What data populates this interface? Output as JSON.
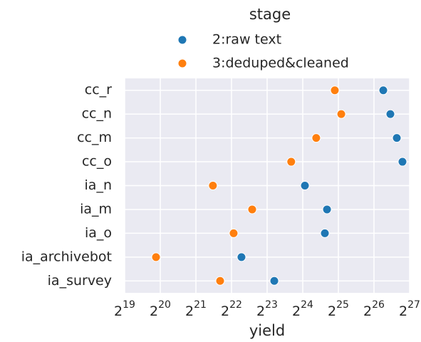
{
  "chart_data": {
    "type": "scatter",
    "xlabel": "yield",
    "legend_title": "stage",
    "legend_position": "top",
    "xscale": "log",
    "logbase": 2,
    "grid": true,
    "background": "#eaeaf2",
    "categories": [
      "cc_r",
      "cc_n",
      "cc_m",
      "cc_o",
      "ia_n",
      "ia_m",
      "ia_o",
      "ia_archivebot",
      "ia_survey"
    ],
    "series": [
      {
        "name": "2:raw text",
        "color": "#1f77b4",
        "values": [
          80400000,
          92300000,
          104600000,
          116800000,
          17500000,
          26900000,
          25800000,
          5090000,
          9640000
        ]
      },
      {
        "name": "3:deduped&cleaned",
        "color": "#ff7f0e",
        "values": [
          31300000,
          35500000,
          21800000,
          13400000,
          2920000,
          6270000,
          4370000,
          965000,
          3360000
        ]
      }
    ],
    "xlim": [
      524288,
      134217728
    ],
    "xticks": [
      {
        "value": 524288,
        "label": "2^19"
      },
      {
        "value": 1048576,
        "label": "2^20"
      },
      {
        "value": 2097152,
        "label": "2^21"
      },
      {
        "value": 4194304,
        "label": "2^22"
      },
      {
        "value": 8388608,
        "label": "2^23"
      },
      {
        "value": 16777216,
        "label": "2^24"
      },
      {
        "value": 33554432,
        "label": "2^25"
      },
      {
        "value": 67108864,
        "label": "2^26"
      },
      {
        "value": 134217728,
        "label": "2^27"
      }
    ]
  }
}
